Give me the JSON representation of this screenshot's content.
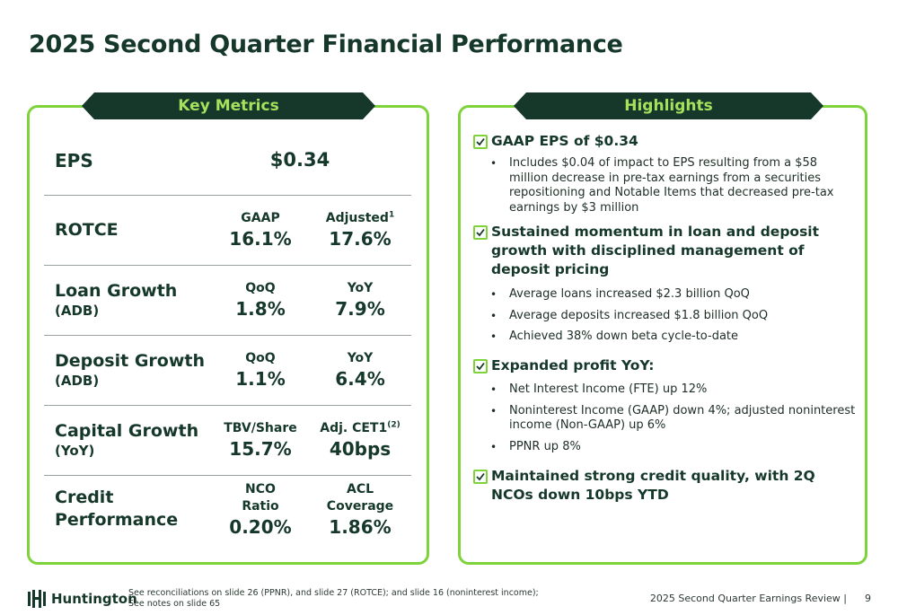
{
  "title": "2025 Second Quarter Financial Performance",
  "key_metrics": {
    "tab_label": "Key Metrics",
    "eps": {
      "label": "EPS",
      "value": "$0.34"
    },
    "rotce": {
      "label": "ROTCE",
      "h1": "GAAP",
      "v1": "16.1%",
      "h2": "Adjusted",
      "h2_sup": "1",
      "v2": "17.6%"
    },
    "loan": {
      "label": "Loan Growth",
      "sub": "(ADB)",
      "h1": "QoQ",
      "v1": "1.8%",
      "h2": "YoY",
      "v2": "7.9%"
    },
    "deposit": {
      "label": "Deposit Growth",
      "sub": "(ADB)",
      "h1": "QoQ",
      "v1": "1.1%",
      "h2": "YoY",
      "v2": "6.4%"
    },
    "capital": {
      "label": "Capital Growth",
      "sub": "(YoY)",
      "h1": "TBV/Share",
      "v1": "15.7%",
      "h2": "Adj. CET1",
      "h2_sup": "(2)",
      "v2": "40bps"
    },
    "credit": {
      "label1": "Credit",
      "label2": "Performance",
      "h1a": "NCO",
      "h1b": "Ratio",
      "v1": "0.20%",
      "h2a": "ACL",
      "h2b": "Coverage",
      "v2": "1.86%"
    }
  },
  "highlights": {
    "tab_label": "Highlights",
    "items": [
      {
        "heading": "GAAP EPS of $0.34",
        "bullets": [
          "Includes $0.04 of impact to EPS resulting from a $58 million decrease in pre-tax earnings from a securities repositioning and Notable Items that decreased pre-tax earnings by $3 million"
        ]
      },
      {
        "heading": "Sustained momentum in loan and deposit growth with disciplined management of deposit pricing",
        "bullets": [
          "Average loans increased $2.3 billion QoQ",
          "Average deposits increased $1.8 billion QoQ",
          "Achieved 38% down beta cycle-to-date"
        ]
      },
      {
        "heading": "Expanded profit YoY:",
        "bullets": [
          "Net Interest Income (FTE) up 12%",
          "Noninterest Income (GAAP) down 4%; adjusted noninterest income (Non-GAAP) up 6%",
          "PPNR up 8%"
        ]
      },
      {
        "heading": "Maintained strong credit quality, with 2Q NCOs down 10bps YTD",
        "bullets": []
      }
    ]
  },
  "footer": {
    "brand": "Huntington",
    "note_line1": "See reconciliations on slide 26 (PPNR), and slide 27 (ROTCE); and slide 16 (noninterest income);",
    "note_line2": "See notes on slide 65",
    "deck": "2025 Second Quarter Earnings Review  |",
    "page": "9"
  },
  "colors": {
    "dark_green": "#16382b",
    "accent_green": "#7ed23a",
    "tab_text": "#a5e15c"
  }
}
